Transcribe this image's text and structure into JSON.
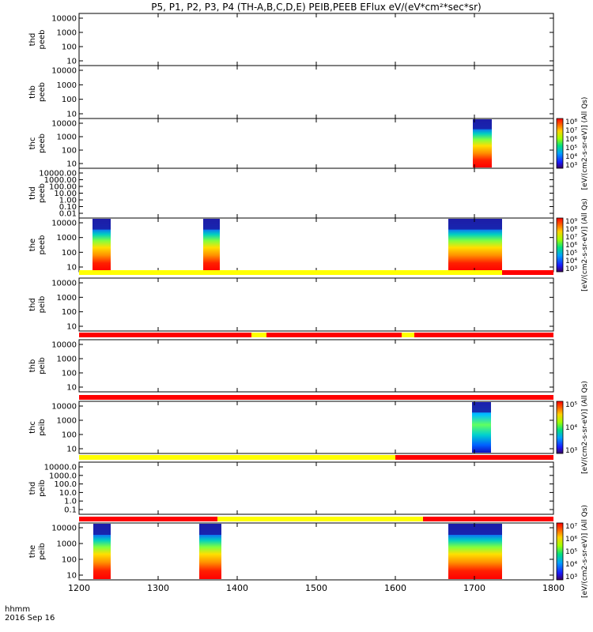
{
  "chart_data": {
    "type": "heatmap",
    "title": "P5, P1, P2, P3, P4 (TH-A,B,C,D,E) PEIB,PEEB EFlux eV/(eV*cm²*sec*sr)",
    "x_ticks": [
      "1200",
      "1300",
      "1400",
      "1500",
      "1600",
      "1700",
      "1800"
    ],
    "xlim": [
      1200,
      1800
    ],
    "x_unit_label": "hhmm",
    "date_label": "2016 Sep 16",
    "colorbar_label": "[eV/(cm2-s-sr-eV)] (All Qs)",
    "quality_flag_colors": {
      "good": "#ffff00",
      "flagged": "#ff0000"
    },
    "panels": [
      {
        "ylabel": [
          "thd",
          "peeb"
        ],
        "y_ticks": [
          "10000",
          "1000",
          "100",
          "10"
        ],
        "scale": "log",
        "spectra": [],
        "colorbar": null
      },
      {
        "ylabel": [
          "thb",
          "peeb"
        ],
        "y_ticks": [
          "10000",
          "1000",
          "100",
          "10"
        ],
        "scale": "log",
        "spectra": [],
        "colorbar": null
      },
      {
        "ylabel": [
          "thc",
          "peeb"
        ],
        "y_ticks": [
          "10000",
          "1000",
          "100",
          "10"
        ],
        "scale": "log",
        "spectra": [
          {
            "x_start": 1698,
            "x_end": 1722
          }
        ],
        "colorbar": {
          "ticks": [
            "10⁸",
            "10⁷",
            "10⁶",
            "10⁵",
            "10⁴",
            "10³"
          ]
        }
      },
      {
        "ylabel": [
          "thd",
          "peeb"
        ],
        "y_ticks": [
          "10000.00",
          "1000.00",
          "100.00",
          "10.00",
          "1.00",
          "0.10",
          "0.01"
        ],
        "scale": "log",
        "spectra": [],
        "colorbar": null
      },
      {
        "ylabel": [
          "the",
          "peeb"
        ],
        "y_ticks": [
          "10000",
          "1000",
          "100",
          "10"
        ],
        "scale": "log",
        "spectra": [
          {
            "x_start": 1217,
            "x_end": 1240
          },
          {
            "x_start": 1357,
            "x_end": 1378
          },
          {
            "x_start": 1667,
            "x_end": 1735
          }
        ],
        "colorbar": {
          "ticks": [
            "10⁹",
            "10⁸",
            "10⁷",
            "10⁶",
            "10⁵",
            "10⁴",
            "10³"
          ]
        }
      },
      {
        "ylabel": [
          "thd",
          "peib"
        ],
        "y_ticks": [
          "10000",
          "1000",
          "100",
          "10"
        ],
        "scale": "log",
        "flag_bar": [
          {
            "x_start": 1200,
            "x_end": 1735,
            "state": "good"
          },
          {
            "x_start": 1735,
            "x_end": 1800,
            "state": "flagged"
          }
        ],
        "spectra": [],
        "colorbar": null
      },
      {
        "ylabel": [
          "thb",
          "peib"
        ],
        "y_ticks": [
          "10000",
          "1000",
          "100",
          "10"
        ],
        "scale": "log",
        "flag_bar": [
          {
            "x_start": 1200,
            "x_end": 1418,
            "state": "flagged"
          },
          {
            "x_start": 1418,
            "x_end": 1437,
            "state": "good"
          },
          {
            "x_start": 1437,
            "x_end": 1608,
            "state": "flagged"
          },
          {
            "x_start": 1608,
            "x_end": 1624,
            "state": "good"
          },
          {
            "x_start": 1624,
            "x_end": 1800,
            "state": "flagged"
          }
        ],
        "spectra": [],
        "colorbar": null
      },
      {
        "ylabel": [
          "thc",
          "peib"
        ],
        "y_ticks": [
          "10000",
          "1000",
          "100",
          "10"
        ],
        "scale": "log",
        "flag_bar": [
          {
            "x_start": 1200,
            "x_end": 1800,
            "state": "flagged"
          }
        ],
        "spectra": [
          {
            "x_start": 1697,
            "x_end": 1721
          }
        ],
        "colorbar": {
          "ticks": [
            "10⁵",
            "10⁴",
            "10³"
          ]
        }
      },
      {
        "ylabel": [
          "thd",
          "peib"
        ],
        "y_ticks": [
          "10000.0",
          "1000.0",
          "100.0",
          "10.0",
          "1.0",
          "0.1"
        ],
        "scale": "log",
        "flag_bar": [
          {
            "x_start": 1200,
            "x_end": 1600,
            "state": "good"
          },
          {
            "x_start": 1600,
            "x_end": 1800,
            "state": "flagged"
          }
        ],
        "spectra": [],
        "colorbar": null
      },
      {
        "ylabel": [
          "the",
          "peib"
        ],
        "y_ticks": [
          "10000",
          "1000",
          "100",
          "10"
        ],
        "scale": "log",
        "flag_bar": [
          {
            "x_start": 1200,
            "x_end": 1375,
            "state": "flagged"
          },
          {
            "x_start": 1375,
            "x_end": 1635,
            "state": "good"
          },
          {
            "x_start": 1635,
            "x_end": 1800,
            "state": "flagged"
          }
        ],
        "spectra": [
          {
            "x_start": 1218,
            "x_end": 1240
          },
          {
            "x_start": 1352,
            "x_end": 1380
          },
          {
            "x_start": 1667,
            "x_end": 1735
          }
        ],
        "colorbar": {
          "ticks": [
            "10⁷",
            "10⁶",
            "10⁵",
            "10⁴",
            "10³"
          ]
        }
      }
    ]
  }
}
